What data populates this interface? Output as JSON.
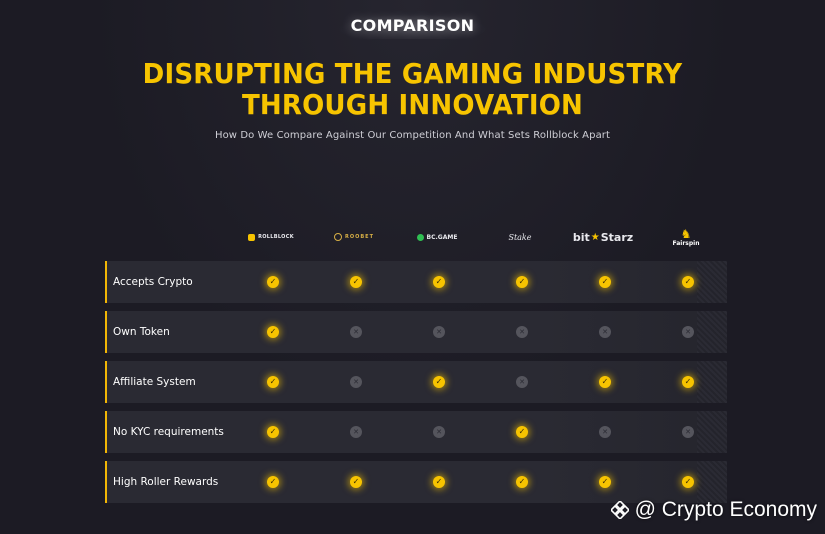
{
  "section_badge": "COMPARISON",
  "headline": {
    "line1": "DISRUPTING THE GAMING INDUSTRY",
    "line2": "THROUGH INNOVATION"
  },
  "subtitle": "How Do We Compare Against Our Competition And What Sets Rollblock Apart",
  "brands": [
    {
      "name": "ROLLBLOCK",
      "logo": "rollblock-logo"
    },
    {
      "name": "ROOBET",
      "logo": "roobet-logo"
    },
    {
      "name": "BC.GAME",
      "logo": "bcgame-logo"
    },
    {
      "name": "Stake",
      "logo": "stake-logo"
    },
    {
      "name_a": "bit",
      "name_b": "Starz",
      "logo": "bitstarz-logo"
    },
    {
      "name": "Fairspin",
      "logo": "fairspin-logo"
    }
  ],
  "features": [
    {
      "label": "Accepts Crypto",
      "values": [
        true,
        true,
        true,
        true,
        true,
        true
      ]
    },
    {
      "label": "Own Token",
      "values": [
        true,
        false,
        false,
        false,
        false,
        false
      ]
    },
    {
      "label": "Affiliate System",
      "values": [
        true,
        false,
        true,
        false,
        true,
        true
      ]
    },
    {
      "label": "No KYC requirements",
      "values": [
        true,
        false,
        false,
        true,
        false,
        false
      ]
    },
    {
      "label": "High Roller Rewards",
      "values": [
        true,
        true,
        true,
        true,
        true,
        true
      ]
    }
  ],
  "icons": {
    "yes": "check-circle-icon",
    "no": "x-circle-icon"
  },
  "colors": {
    "accent": "#f7c400",
    "background": "#1c1b24",
    "row_background": "#2a2a33",
    "no_mark": "#55555d"
  },
  "watermark": {
    "at": "@",
    "text": "Crypto Economy"
  }
}
